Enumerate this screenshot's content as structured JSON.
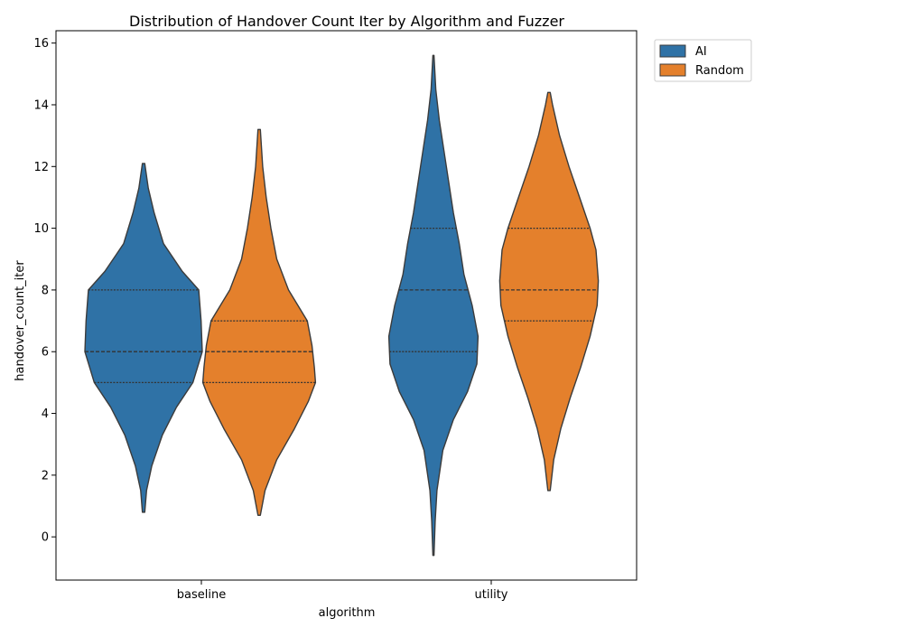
{
  "chart_data": {
    "type": "violin",
    "title": "Distribution of Handover Count Iter by Algorithm and Fuzzer",
    "xlabel": "algorithm",
    "ylabel": "handover_count_iter",
    "categories": [
      "baseline",
      "utility"
    ],
    "ylim": [
      -1.4,
      16.4
    ],
    "yticks": [
      0,
      2,
      4,
      6,
      8,
      10,
      12,
      14,
      16
    ],
    "grid": false,
    "legend_position": "upper-right-outside",
    "series": [
      {
        "name": "AI",
        "color": "#2f72a6",
        "violins": [
          {
            "category": "baseline",
            "min": 0.8,
            "max": 12.1,
            "quartiles": [
              5,
              6,
              8
            ],
            "density": [
              [
                0.8,
                0.01
              ],
              [
                1.5,
                0.025
              ],
              [
                2.3,
                0.07
              ],
              [
                3.3,
                0.16
              ],
              [
                4.2,
                0.28
              ],
              [
                5.0,
                0.42
              ],
              [
                6.0,
                0.5
              ],
              [
                7.0,
                0.49
              ],
              [
                8.0,
                0.47
              ],
              [
                8.6,
                0.33
              ],
              [
                9.5,
                0.17
              ],
              [
                10.5,
                0.09
              ],
              [
                11.3,
                0.04
              ],
              [
                12.1,
                0.01
              ]
            ]
          },
          {
            "category": "utility",
            "min": -0.6,
            "max": 15.6,
            "quartiles": [
              6,
              8,
              10
            ],
            "density": [
              [
                -0.6,
                0.005
              ],
              [
                0.5,
                0.015
              ],
              [
                1.5,
                0.03
              ],
              [
                2.8,
                0.08
              ],
              [
                3.8,
                0.17
              ],
              [
                4.7,
                0.29
              ],
              [
                5.6,
                0.37
              ],
              [
                6.5,
                0.38
              ],
              [
                7.5,
                0.33
              ],
              [
                8.5,
                0.26
              ],
              [
                9.5,
                0.22
              ],
              [
                10.5,
                0.17
              ],
              [
                11.5,
                0.13
              ],
              [
                12.5,
                0.09
              ],
              [
                13.5,
                0.05
              ],
              [
                14.5,
                0.02
              ],
              [
                15.6,
                0.005
              ]
            ]
          }
        ]
      },
      {
        "name": "Random",
        "color": "#e4802c",
        "violins": [
          {
            "category": "baseline",
            "min": 0.7,
            "max": 13.2,
            "quartiles": [
              5,
              6,
              7
            ],
            "density": [
              [
                0.7,
                0.01
              ],
              [
                1.5,
                0.05
              ],
              [
                2.5,
                0.15
              ],
              [
                3.5,
                0.3
              ],
              [
                4.4,
                0.42
              ],
              [
                5.0,
                0.48
              ],
              [
                5.5,
                0.47
              ],
              [
                6.2,
                0.45
              ],
              [
                7.0,
                0.41
              ],
              [
                8.0,
                0.25
              ],
              [
                9.0,
                0.15
              ],
              [
                10.0,
                0.1
              ],
              [
                11.0,
                0.06
              ],
              [
                12.0,
                0.03
              ],
              [
                13.2,
                0.01
              ]
            ]
          },
          {
            "category": "utility",
            "min": 1.5,
            "max": 14.4,
            "quartiles": [
              7,
              8,
              10
            ],
            "density": [
              [
                1.5,
                0.01
              ],
              [
                2.5,
                0.04
              ],
              [
                3.5,
                0.1
              ],
              [
                4.5,
                0.18
              ],
              [
                5.5,
                0.27
              ],
              [
                6.5,
                0.35
              ],
              [
                7.5,
                0.41
              ],
              [
                8.3,
                0.42
              ],
              [
                9.3,
                0.4
              ],
              [
                10.0,
                0.35
              ],
              [
                11.0,
                0.26
              ],
              [
                12.0,
                0.17
              ],
              [
                13.0,
                0.09
              ],
              [
                14.0,
                0.03
              ],
              [
                14.4,
                0.01
              ]
            ]
          }
        ]
      }
    ]
  }
}
